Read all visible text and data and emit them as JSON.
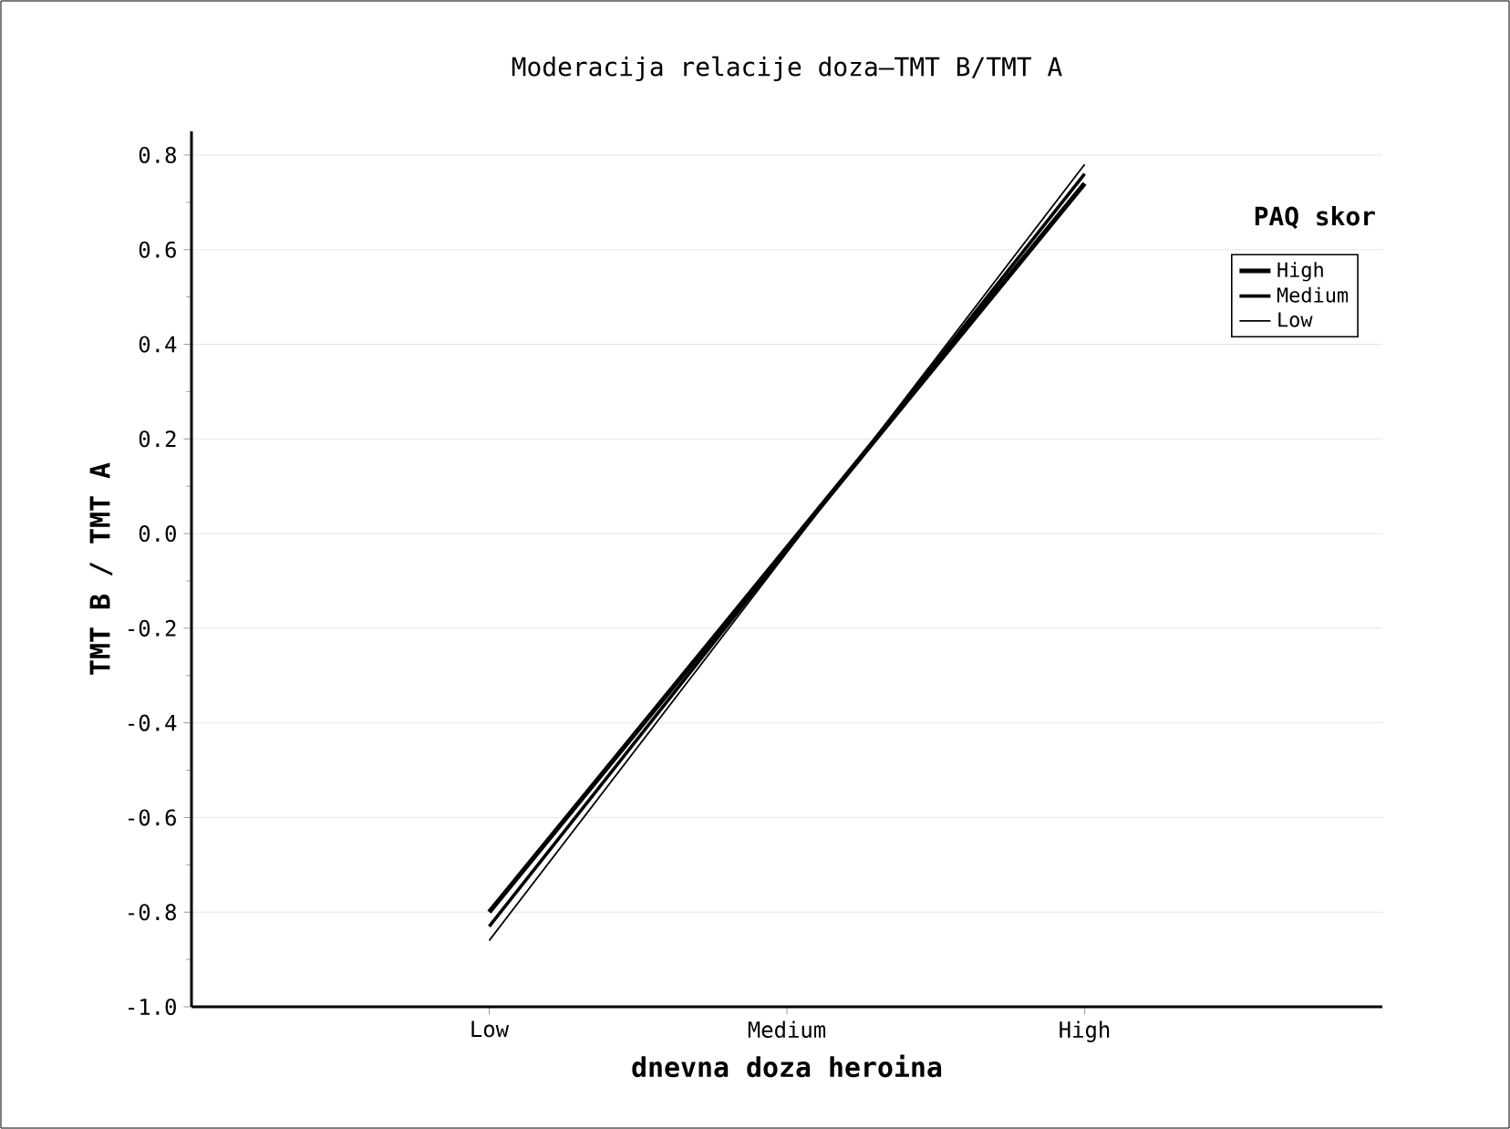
{
  "chart_data": {
    "type": "line",
    "title": "Moderacija relacije doza–TMT B/TMT A",
    "xlabel": "dnevna doza heroina",
    "ylabel": "TMT B / TMT A",
    "legend_title": "PAQ skor",
    "categories": [
      "Low",
      "Medium",
      "High"
    ],
    "series": [
      {
        "name": "High",
        "color": "#000000",
        "values": [
          -0.8,
          -0.03,
          0.74
        ]
      },
      {
        "name": "Medium",
        "color": "#000000",
        "values": [
          -0.83,
          -0.035,
          0.76
        ]
      },
      {
        "name": "Low",
        "color": "#000000",
        "values": [
          -0.86,
          -0.04,
          0.78
        ]
      }
    ],
    "ylim": [
      -1.0,
      0.85
    ],
    "yticks": [
      {
        "value": -1.0,
        "label": "-1.0"
      },
      -0.8,
      -0.6,
      -0.4,
      -0.2,
      {
        "value": 0,
        "label": "0.0"
      },
      0.2,
      0.4,
      0.6,
      0.8
    ],
    "grid": "y",
    "legend": "top right",
    "marker": "none",
    "line_style": "solid"
  }
}
